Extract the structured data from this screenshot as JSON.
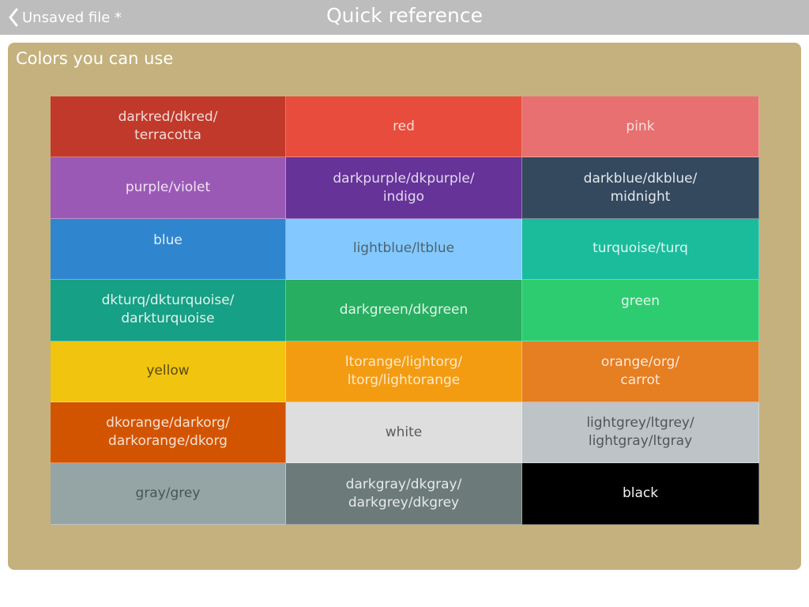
{
  "header": {
    "back_label": "Unsaved file *",
    "title": "Quick reference"
  },
  "panel": {
    "title": "Colors you can use"
  },
  "colors": [
    {
      "label": "darkred/dkred/\nterracotta",
      "bg": "#c0392b",
      "fg": "#f2dcd8"
    },
    {
      "label": "red",
      "bg": "#e74c3c",
      "fg": "#f6d9d5"
    },
    {
      "label": "pink",
      "bg": "#e87070",
      "fg": "#f7dede"
    },
    {
      "label": "purple/violet",
      "bg": "#9b59b6",
      "fg": "#efe2f4"
    },
    {
      "label": "darkpurple/dkpurple/\nindigo",
      "bg": "#663399",
      "fg": "#e3d8ee"
    },
    {
      "label": "darkblue/dkblue/\nmidnight",
      "bg": "#34495e",
      "fg": "#e3e8ee"
    },
    {
      "label": "blue",
      "bg": "#2f86cf",
      "fg": "#e3eef8",
      "align": "top"
    },
    {
      "label": "lightblue/ltblue",
      "bg": "#83c8ff",
      "fg": "#4b6470"
    },
    {
      "label": "turquoise/turq",
      "bg": "#1abc9c",
      "fg": "#dff5f0"
    },
    {
      "label": "dkturq/dkturquoise/\ndarkturquoise",
      "bg": "#16a085",
      "fg": "#dff3ef"
    },
    {
      "label": "darkgreen/dkgreen",
      "bg": "#27ae60",
      "fg": "#e2f4ea"
    },
    {
      "label": "green",
      "bg": "#2ecc71",
      "fg": "#e2f7eb",
      "align": "top"
    },
    {
      "label": "yellow",
      "bg": "#f1c40f",
      "fg": "#5a4c10"
    },
    {
      "label": "ltorange/lightorg/\nltorg/lightorange",
      "bg": "#f39c12",
      "fg": "#fbe9cc"
    },
    {
      "label": "orange/org/\ncarrot",
      "bg": "#e67e22",
      "fg": "#faeadb"
    },
    {
      "label": "dkorange/darkorg/\ndarkorange/dkorg",
      "bg": "#d35400",
      "fg": "#f7e1d2"
    },
    {
      "label": "white",
      "bg": "#dedede",
      "fg": "#5c5c5c"
    },
    {
      "label": "lightgrey/ltgrey/\nlightgray/ltgray",
      "bg": "#bdc3c7",
      "fg": "#4f5559"
    },
    {
      "label": "gray/grey",
      "bg": "#95a5a6",
      "fg": "#495456"
    },
    {
      "label": "darkgray/dkgray/\ndarkgrey/dkgrey",
      "bg": "#6c7a7a",
      "fg": "#e6eaea"
    },
    {
      "label": "black",
      "bg": "#000000",
      "fg": "#f2f2f2"
    }
  ]
}
